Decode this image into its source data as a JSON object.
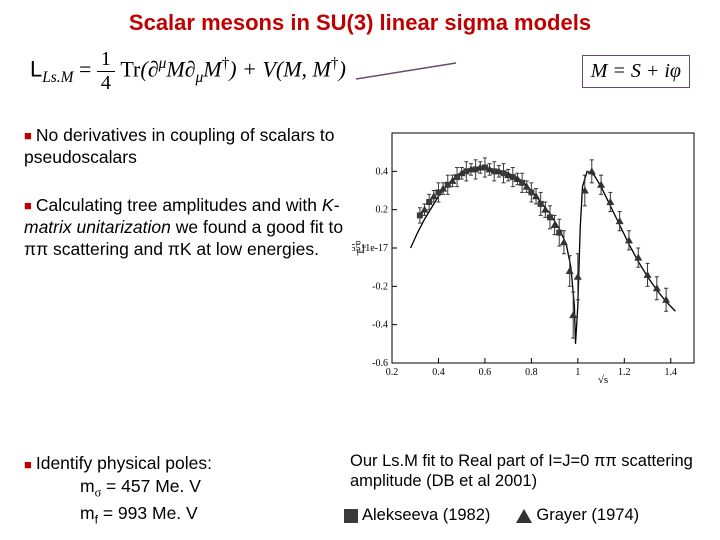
{
  "title": "Scalar mesons in SU(3) linear sigma models",
  "lagrangian": {
    "lhs": "L",
    "lhs_sub": "Ls.M",
    "frac_num": "1",
    "frac_den": "4",
    "tr": "Tr",
    "arg1": "(∂",
    "mu_sup": "μ",
    "mid1": "M∂",
    "mu_sub": "μ",
    "mid2": "M",
    "dag1": "†",
    "plus": ") + V(M, M",
    "dag2": "†",
    "close": ")"
  },
  "m_def": "M = S + iφ",
  "bullets": {
    "b1": "No derivatives in coupling of scalars to pseudoscalars",
    "b2a": "Calculating tree amplitudes and with ",
    "b2b": "K-matrix unitarization",
    "b2c": " we found a good fit to ππ scattering and πK at low energies."
  },
  "poles": {
    "head": "Identify physical poles:",
    "l1a": "m",
    "l1sub": "σ",
    "l1b": " = 457 Me. V",
    "l2a": "m",
    "l2sub": "f",
    "l2b": " = 993 Me. V"
  },
  "caption": "Our Ls.M fit to Real part of I=J=0 ππ scattering amplitude (DB et al 2001)",
  "legend": {
    "a": "Alekseeva (1982)",
    "b": "Grayer (1974)"
  },
  "plot": {
    "xlim": [
      0.2,
      1.5
    ],
    "ylim": [
      -0.6,
      0.6
    ],
    "xticks": [
      0.2,
      0.4,
      0.6,
      0.8,
      1,
      1.2,
      1.4
    ],
    "yticks": [
      -0.6,
      -0.4,
      -0.2,
      0,
      0.2,
      0.4
    ],
    "ylabel": "T₀⁰",
    "xlabel": "√s",
    "midlabel": "5.5511e-17",
    "curve_color": "#000000",
    "tri_color": "#333333",
    "sq_color": "#3a3a3a",
    "bg": "#ffffff",
    "curve": [
      [
        0.28,
        0.0
      ],
      [
        0.31,
        0.08
      ],
      [
        0.34,
        0.15
      ],
      [
        0.37,
        0.21
      ],
      [
        0.4,
        0.27
      ],
      [
        0.44,
        0.33
      ],
      [
        0.48,
        0.38
      ],
      [
        0.52,
        0.41
      ],
      [
        0.56,
        0.42
      ],
      [
        0.6,
        0.42
      ],
      [
        0.64,
        0.41
      ],
      [
        0.68,
        0.4
      ],
      [
        0.72,
        0.38
      ],
      [
        0.76,
        0.35
      ],
      [
        0.8,
        0.3
      ],
      [
        0.84,
        0.24
      ],
      [
        0.88,
        0.18
      ],
      [
        0.92,
        0.1
      ],
      [
        0.95,
        0.02
      ],
      [
        0.97,
        -0.1
      ],
      [
        0.985,
        -0.3
      ],
      [
        0.99,
        -0.5
      ],
      [
        1.0,
        -0.3
      ],
      [
        1.01,
        0.1
      ],
      [
        1.02,
        0.32
      ],
      [
        1.04,
        0.4
      ],
      [
        1.07,
        0.38
      ],
      [
        1.1,
        0.32
      ],
      [
        1.14,
        0.22
      ],
      [
        1.18,
        0.12
      ],
      [
        1.22,
        0.02
      ],
      [
        1.26,
        -0.07
      ],
      [
        1.3,
        -0.15
      ],
      [
        1.34,
        -0.22
      ],
      [
        1.38,
        -0.28
      ],
      [
        1.42,
        -0.33
      ]
    ],
    "squares": [
      [
        0.32,
        0.17,
        0.04
      ],
      [
        0.36,
        0.24,
        0.04
      ],
      [
        0.4,
        0.29,
        0.05
      ],
      [
        0.44,
        0.33,
        0.05
      ],
      [
        0.48,
        0.37,
        0.05
      ],
      [
        0.52,
        0.4,
        0.05
      ],
      [
        0.56,
        0.41,
        0.05
      ],
      [
        0.6,
        0.42,
        0.05
      ],
      [
        0.64,
        0.4,
        0.05
      ],
      [
        0.68,
        0.39,
        0.05
      ],
      [
        0.72,
        0.37,
        0.05
      ],
      [
        0.76,
        0.34,
        0.05
      ],
      [
        0.8,
        0.29,
        0.05
      ],
      [
        0.84,
        0.23,
        0.06
      ],
      [
        0.88,
        0.16,
        0.06
      ],
      [
        0.92,
        0.08,
        0.07
      ]
    ],
    "triangles": [
      [
        0.34,
        0.2,
        0.03
      ],
      [
        0.38,
        0.27,
        0.03
      ],
      [
        0.42,
        0.31,
        0.03
      ],
      [
        0.46,
        0.35,
        0.03
      ],
      [
        0.5,
        0.39,
        0.03
      ],
      [
        0.54,
        0.41,
        0.03
      ],
      [
        0.58,
        0.42,
        0.03
      ],
      [
        0.62,
        0.41,
        0.03
      ],
      [
        0.66,
        0.4,
        0.03
      ],
      [
        0.7,
        0.38,
        0.03
      ],
      [
        0.74,
        0.36,
        0.03
      ],
      [
        0.78,
        0.32,
        0.03
      ],
      [
        0.82,
        0.27,
        0.04
      ],
      [
        0.86,
        0.2,
        0.04
      ],
      [
        0.9,
        0.12,
        0.05
      ],
      [
        0.94,
        0.03,
        0.06
      ],
      [
        0.965,
        -0.12,
        0.08
      ],
      [
        0.98,
        -0.35,
        0.12
      ],
      [
        1.0,
        -0.15,
        0.12
      ],
      [
        1.03,
        0.3,
        0.08
      ],
      [
        1.06,
        0.4,
        0.06
      ],
      [
        1.1,
        0.33,
        0.05
      ],
      [
        1.14,
        0.24,
        0.05
      ],
      [
        1.18,
        0.14,
        0.05
      ],
      [
        1.22,
        0.04,
        0.05
      ],
      [
        1.26,
        -0.05,
        0.05
      ],
      [
        1.3,
        -0.14,
        0.06
      ],
      [
        1.34,
        -0.21,
        0.06
      ],
      [
        1.38,
        -0.27,
        0.06
      ]
    ]
  }
}
